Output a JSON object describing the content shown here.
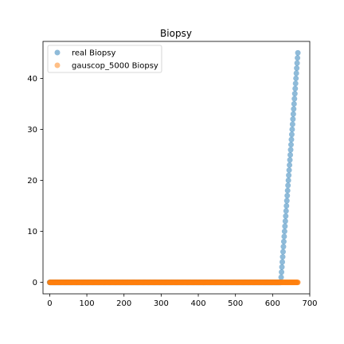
{
  "chart_data": {
    "type": "scatter",
    "title": "Biopsy",
    "xlabel": "",
    "ylabel": "",
    "xlim": [
      -18,
      700
    ],
    "ylim": [
      -2.25,
      47.25
    ],
    "x_ticks": [
      0,
      100,
      200,
      300,
      400,
      500,
      600,
      700
    ],
    "y_ticks": [
      0,
      10,
      20,
      30,
      40
    ],
    "grid": false,
    "legend_position": "upper-left",
    "series": [
      {
        "name": "real Biopsy",
        "color": "#1f77b4",
        "x_range": [
          0,
          668
        ],
        "zero_until": 622,
        "rise_values": [
          1,
          2,
          3,
          4,
          5,
          6,
          7,
          8,
          9,
          10,
          11,
          12,
          13,
          14,
          15,
          16,
          17,
          18,
          19,
          20,
          21,
          22,
          23,
          24,
          25,
          26,
          27,
          28,
          29,
          30,
          31,
          32,
          33,
          34,
          35,
          36,
          37,
          38,
          39,
          40,
          41,
          42,
          43,
          44,
          45
        ]
      },
      {
        "name": "gauscop_5000 Biopsy",
        "color": "#ff7f0e",
        "x_range": [
          0,
          668
        ],
        "constant_value": 0
      }
    ]
  }
}
